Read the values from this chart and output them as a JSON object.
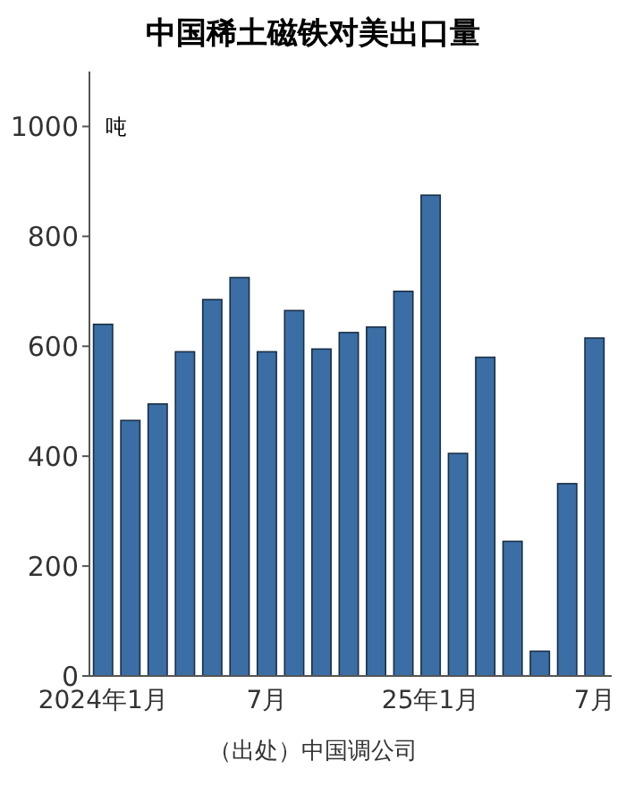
{
  "chart_data": {
    "type": "bar",
    "title": "中国稀土磁铁对美出口量",
    "ylabel": "吨",
    "annotations": [
      "（出处）中国调公司"
    ],
    "categories": [
      "2024年1月",
      null,
      null,
      null,
      null,
      null,
      "7月",
      null,
      null,
      null,
      null,
      null,
      "25年1月",
      null,
      null,
      null,
      null,
      null,
      "7月"
    ],
    "values": [
      640,
      465,
      495,
      590,
      685,
      725,
      590,
      665,
      595,
      625,
      635,
      700,
      875,
      405,
      580,
      245,
      45,
      350,
      615
    ],
    "color": "#3a6ea5",
    "ylim": [
      0,
      1100
    ],
    "yticks": [
      0,
      200,
      400,
      600,
      800,
      1000
    ],
    "grid": false
  }
}
